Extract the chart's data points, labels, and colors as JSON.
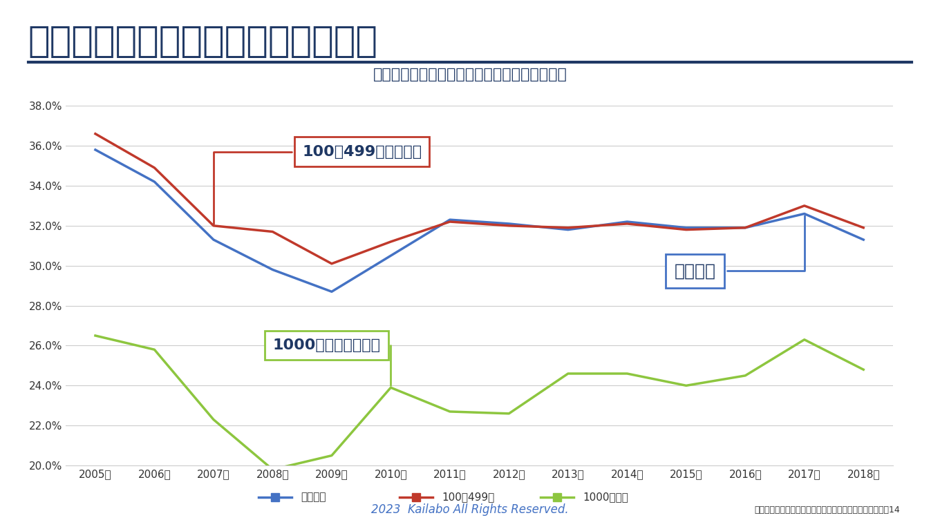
{
  "title": "大企業では早期離職率が上昇傾向？",
  "subtitle": "大企業と中小企業の早期離職率の差は縮小傾向",
  "years": [
    2005,
    2006,
    2007,
    2008,
    2009,
    2010,
    2011,
    2012,
    2013,
    2014,
    2015,
    2016,
    2017,
    2018
  ],
  "zentai_heikin": [
    0.358,
    0.342,
    0.313,
    0.298,
    0.287,
    0.305,
    0.323,
    0.321,
    0.318,
    0.322,
    0.319,
    0.319,
    0.326,
    0.313
  ],
  "100_499": [
    0.366,
    0.349,
    0.32,
    0.317,
    0.301,
    0.312,
    0.322,
    0.32,
    0.319,
    0.321,
    0.318,
    0.319,
    0.33,
    0.319
  ],
  "1000_plus": [
    0.265,
    0.258,
    0.223,
    0.198,
    0.205,
    0.239,
    0.227,
    0.226,
    0.246,
    0.246,
    0.24,
    0.245,
    0.263,
    0.248
  ],
  "zentai_color": "#4472C4",
  "hyaku_color": "#C0392B",
  "sen_color": "#8DC63F",
  "background_color": "#FFFFFF",
  "title_color": "#1F3864",
  "subtitle_color": "#1F3864",
  "ylim_min": 0.2,
  "ylim_max": 0.38,
  "footer_text": "2023  Kailabo All Rights Reserved.",
  "source_text": "（厚生労働省　「新規学卒者の離職状況調査」より作成）14"
}
